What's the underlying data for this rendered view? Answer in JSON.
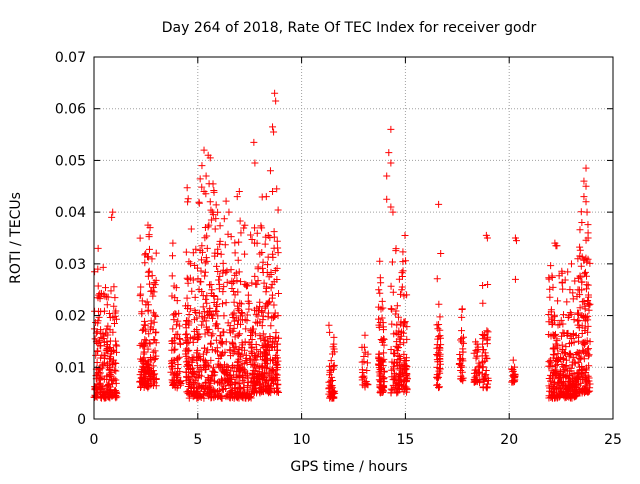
{
  "chart_data": {
    "type": "scatter",
    "title": "Day 264 of 2018, Rate Of TEC Index for receiver godr",
    "xlabel": "GPS time / hours",
    "ylabel": "ROTI / TECUs",
    "xlim": [
      0,
      25
    ],
    "ylim": [
      0,
      0.07
    ],
    "xticks": [
      0,
      5,
      10,
      15,
      20,
      25
    ],
    "xtick_labels": [
      "0",
      "5",
      "10",
      "15",
      "20",
      "25"
    ],
    "yticks": [
      0,
      0.01,
      0.02,
      0.03,
      0.04,
      0.05,
      0.06,
      0.07
    ],
    "ytick_labels": [
      "0",
      "0.01",
      "0.02",
      "0.03",
      "0.04",
      "0.05",
      "0.06",
      "0.07"
    ],
    "grid": true,
    "legend": "none",
    "marker": "+",
    "marker_color": "#ff0000",
    "clusters": [
      {
        "x_start": 0.0,
        "x_end": 1.1,
        "y_min": 0.004,
        "y_max": 0.033,
        "count": 220
      },
      {
        "x_start": 2.2,
        "x_end": 3.0,
        "y_min": 0.006,
        "y_max": 0.038,
        "count": 160
      },
      {
        "x_start": 3.7,
        "x_end": 4.2,
        "y_min": 0.006,
        "y_max": 0.034,
        "count": 70
      },
      {
        "x_start": 4.4,
        "x_end": 6.3,
        "y_min": 0.004,
        "y_max": 0.051,
        "count": 380
      },
      {
        "x_start": 6.3,
        "x_end": 7.7,
        "y_min": 0.004,
        "y_max": 0.043,
        "count": 260
      },
      {
        "x_start": 7.7,
        "x_end": 8.9,
        "y_min": 0.005,
        "y_max": 0.044,
        "count": 280
      },
      {
        "x_start": 11.3,
        "x_end": 11.6,
        "y_min": 0.004,
        "y_max": 0.02,
        "count": 50
      },
      {
        "x_start": 12.9,
        "x_end": 13.2,
        "y_min": 0.006,
        "y_max": 0.025,
        "count": 25
      },
      {
        "x_start": 13.7,
        "x_end": 14.0,
        "y_min": 0.005,
        "y_max": 0.033,
        "count": 80
      },
      {
        "x_start": 14.3,
        "x_end": 15.1,
        "y_min": 0.005,
        "y_max": 0.036,
        "count": 150
      },
      {
        "x_start": 16.5,
        "x_end": 16.7,
        "y_min": 0.006,
        "y_max": 0.032,
        "count": 45
      },
      {
        "x_start": 17.6,
        "x_end": 17.8,
        "y_min": 0.007,
        "y_max": 0.025,
        "count": 30
      },
      {
        "x_start": 18.3,
        "x_end": 18.6,
        "y_min": 0.007,
        "y_max": 0.018,
        "count": 35
      },
      {
        "x_start": 18.7,
        "x_end": 19.0,
        "y_min": 0.006,
        "y_max": 0.029,
        "count": 45
      },
      {
        "x_start": 20.1,
        "x_end": 20.3,
        "y_min": 0.007,
        "y_max": 0.012,
        "count": 22
      },
      {
        "x_start": 21.9,
        "x_end": 22.6,
        "y_min": 0.004,
        "y_max": 0.034,
        "count": 150
      },
      {
        "x_start": 22.6,
        "x_end": 23.3,
        "y_min": 0.004,
        "y_max": 0.03,
        "count": 140
      },
      {
        "x_start": 23.3,
        "x_end": 23.9,
        "y_min": 0.005,
        "y_max": 0.045,
        "count": 150
      }
    ],
    "points": [
      [
        0.9,
        0.04
      ],
      [
        0.2,
        0.033
      ],
      [
        0.85,
        0.039
      ],
      [
        2.6,
        0.0375
      ],
      [
        2.7,
        0.037
      ],
      [
        3.8,
        0.034
      ],
      [
        5.3,
        0.052
      ],
      [
        5.5,
        0.051
      ],
      [
        5.6,
        0.0505
      ],
      [
        5.2,
        0.049
      ],
      [
        5.4,
        0.047
      ],
      [
        5.3,
        0.044
      ],
      [
        5.6,
        0.042
      ],
      [
        5.7,
        0.04
      ],
      [
        7.7,
        0.0535
      ],
      [
        7.75,
        0.0495
      ],
      [
        8.5,
        0.048
      ],
      [
        8.6,
        0.044
      ],
      [
        8.3,
        0.043
      ],
      [
        8.7,
        0.063
      ],
      [
        8.75,
        0.0615
      ],
      [
        8.6,
        0.0565
      ],
      [
        8.65,
        0.0555
      ],
      [
        8.8,
        0.0445
      ],
      [
        7.0,
        0.044
      ],
      [
        6.9,
        0.043
      ],
      [
        6.5,
        0.04
      ],
      [
        14.3,
        0.056
      ],
      [
        14.2,
        0.0515
      ],
      [
        14.3,
        0.0495
      ],
      [
        14.1,
        0.047
      ],
      [
        14.1,
        0.0425
      ],
      [
        14.3,
        0.041
      ],
      [
        14.4,
        0.04
      ],
      [
        16.6,
        0.0415
      ],
      [
        16.7,
        0.032
      ],
      [
        18.9,
        0.0355
      ],
      [
        18.95,
        0.035
      ],
      [
        20.3,
        0.035
      ],
      [
        20.35,
        0.0345
      ],
      [
        20.3,
        0.027
      ],
      [
        22.2,
        0.034
      ],
      [
        22.25,
        0.0335
      ],
      [
        22.3,
        0.0335
      ],
      [
        23.7,
        0.0485
      ],
      [
        23.6,
        0.046
      ],
      [
        23.7,
        0.045
      ],
      [
        23.6,
        0.043
      ],
      [
        23.7,
        0.042
      ],
      [
        23.75,
        0.04
      ],
      [
        23.5,
        0.038
      ],
      [
        23.8,
        0.036
      ],
      [
        23.8,
        0.035
      ],
      [
        23.0,
        0.03
      ]
    ]
  }
}
